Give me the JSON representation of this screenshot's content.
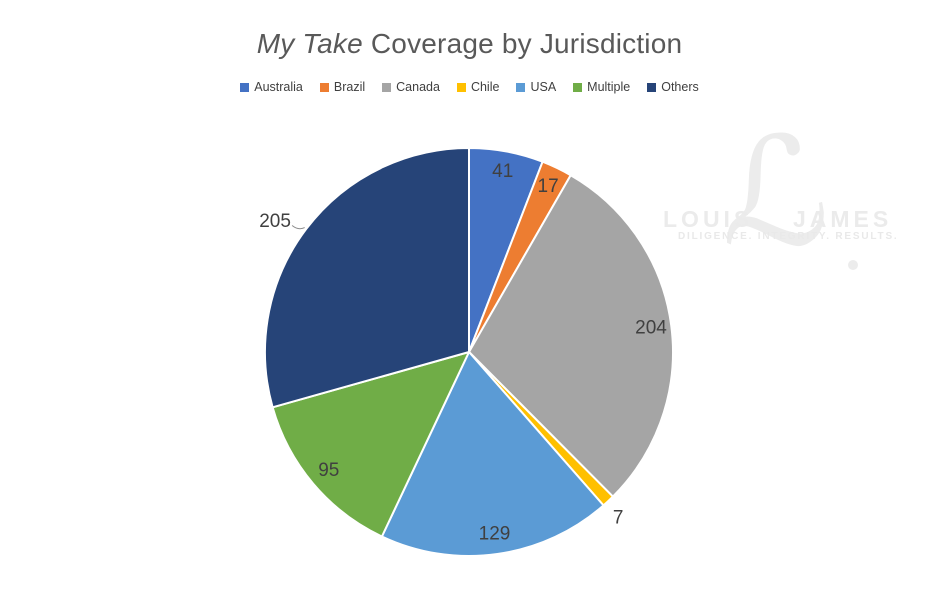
{
  "title": {
    "italic_part": "My Take",
    "rest": " Coverage by Jurisdiction"
  },
  "chart_data": {
    "type": "pie",
    "title": "My Take Coverage by Jurisdiction",
    "categories": [
      "Australia",
      "Brazil",
      "Canada",
      "Chile",
      "USA",
      "Multiple",
      "Others"
    ],
    "values": [
      41,
      17,
      204,
      7,
      129,
      95,
      205
    ],
    "colors": [
      "#4472C4",
      "#ED7D31",
      "#A5A5A5",
      "#FFC000",
      "#5B9BD5",
      "#70AD47",
      "#264478"
    ],
    "total": 698,
    "start_angle_deg": 0,
    "direction": "clockwise",
    "label_placement": [
      "inside",
      "inside",
      "inside",
      "outside",
      "inside",
      "inside",
      "outside"
    ],
    "leader_lines": [
      false,
      false,
      false,
      false,
      false,
      false,
      true
    ],
    "legend_position": "top",
    "data_label_color": "#404040"
  },
  "watermark": {
    "left_word": "LOUIS",
    "right_word": "JAMES",
    "script_letter": "ℒ",
    "tagline": "DILIGENCE. INTEGRITY. RESULTS.",
    "color": "#ebebeb"
  }
}
